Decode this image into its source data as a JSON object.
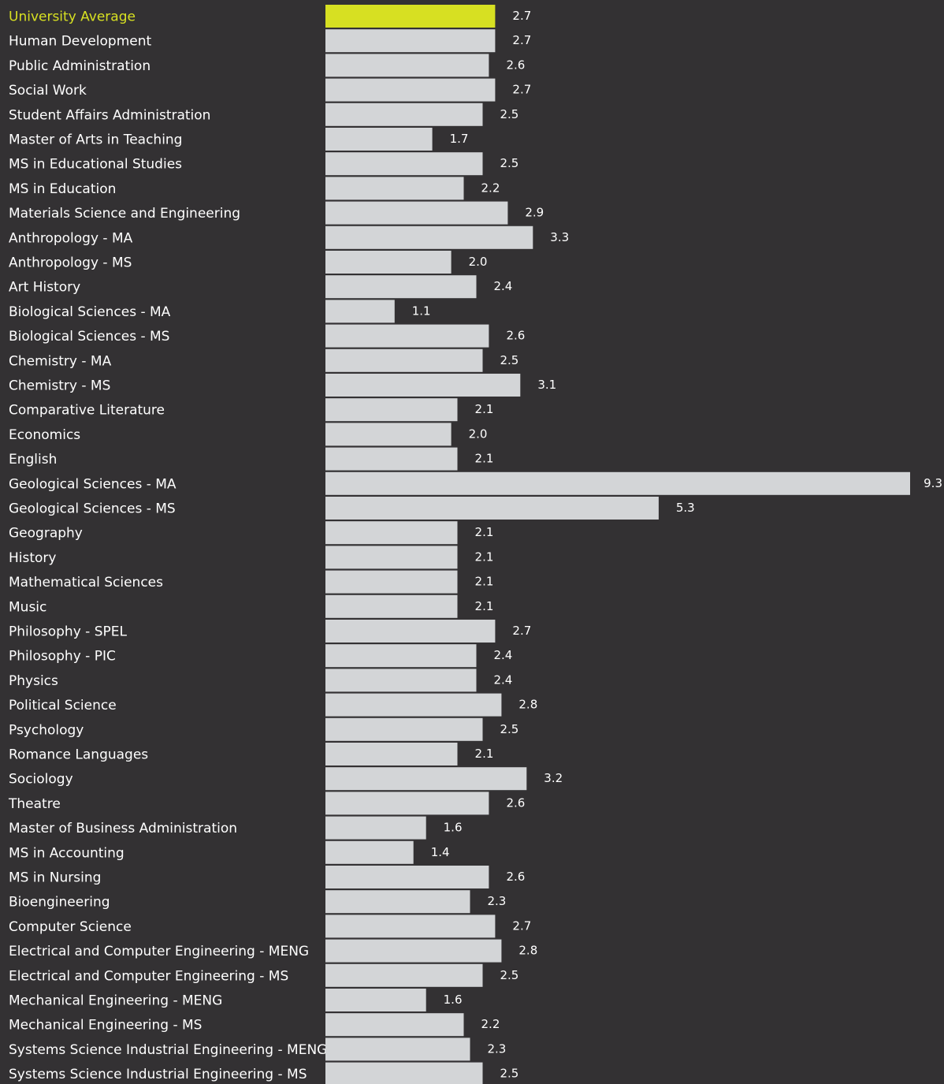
{
  "chart_data": {
    "type": "bar",
    "orientation": "horizontal",
    "highlight_color": "#d7e022",
    "bar_color": "#d3d5d7",
    "background_color": "#333133",
    "text_color": "#ffffff",
    "categories": [
      "University Average",
      "Human Development",
      "Public Administration",
      "Social Work",
      "Student Affairs Administration",
      "Master of Arts in Teaching",
      "MS in Educational Studies",
      "MS in Education",
      "Materials Science and Engineering",
      "Anthropology - MA",
      "Anthropology - MS",
      "Art History",
      "Biological Sciences - MA",
      "Biological Sciences - MS",
      "Chemistry - MA",
      "Chemistry - MS",
      "Comparative Literature",
      "Economics",
      "English",
      "Geological Sciences - MA",
      "Geological Sciences - MS",
      "Geography",
      "History",
      "Mathematical Sciences",
      "Music",
      "Philosophy - SPEL",
      "Philosophy - PIC",
      "Physics",
      "Political Science",
      "Psychology",
      "Romance Languages",
      "Sociology",
      "Theatre",
      "Master of Business Administration",
      "MS in Accounting",
      "MS in Nursing",
      "Bioengineering",
      "Computer Science",
      "Electrical and Computer Engineering - MENG",
      "Electrical and Computer Engineering - MS",
      "Mechanical Engineering - MENG",
      "Mechanical Engineering - MS",
      "Systems Science Industrial Engineering - MENG",
      "Systems Science Industrial Engineering - MS"
    ],
    "values": [
      2.7,
      2.7,
      2.6,
      2.7,
      2.5,
      1.7,
      2.5,
      2.2,
      2.9,
      3.3,
      2.0,
      2.4,
      1.1,
      2.6,
      2.5,
      3.1,
      2.1,
      2.0,
      2.1,
      9.3,
      5.3,
      2.1,
      2.1,
      2.1,
      2.1,
      2.7,
      2.4,
      2.4,
      2.8,
      2.5,
      2.1,
      3.2,
      2.6,
      1.6,
      1.4,
      2.6,
      2.3,
      2.7,
      2.8,
      2.5,
      1.6,
      2.2,
      2.3,
      2.5
    ],
    "value_labels": [
      "2.7",
      "2.7",
      "2.6",
      "2.7",
      "2.5",
      "1.7",
      "2.5",
      "2.2",
      "2.9",
      "3.3",
      "2.0",
      "2.4",
      "1.1",
      "2.6",
      "2.5",
      "3.1",
      "2.1",
      "2.0",
      "2.1",
      "9.3",
      "5.3",
      "2.1",
      "2.1",
      "2.1",
      "2.1",
      "2.7",
      "2.4",
      "2.4",
      "2.8",
      "2.5",
      "2.1",
      "3.2",
      "2.6",
      "1.6",
      "1.4",
      "2.6",
      "2.3",
      "2.7",
      "2.8",
      "2.5",
      "1.6",
      "2.2",
      "2.3",
      "2.5"
    ],
    "highlighted_index": 0,
    "xlim": [
      0,
      9.3
    ],
    "grid": false,
    "legend": "none"
  }
}
